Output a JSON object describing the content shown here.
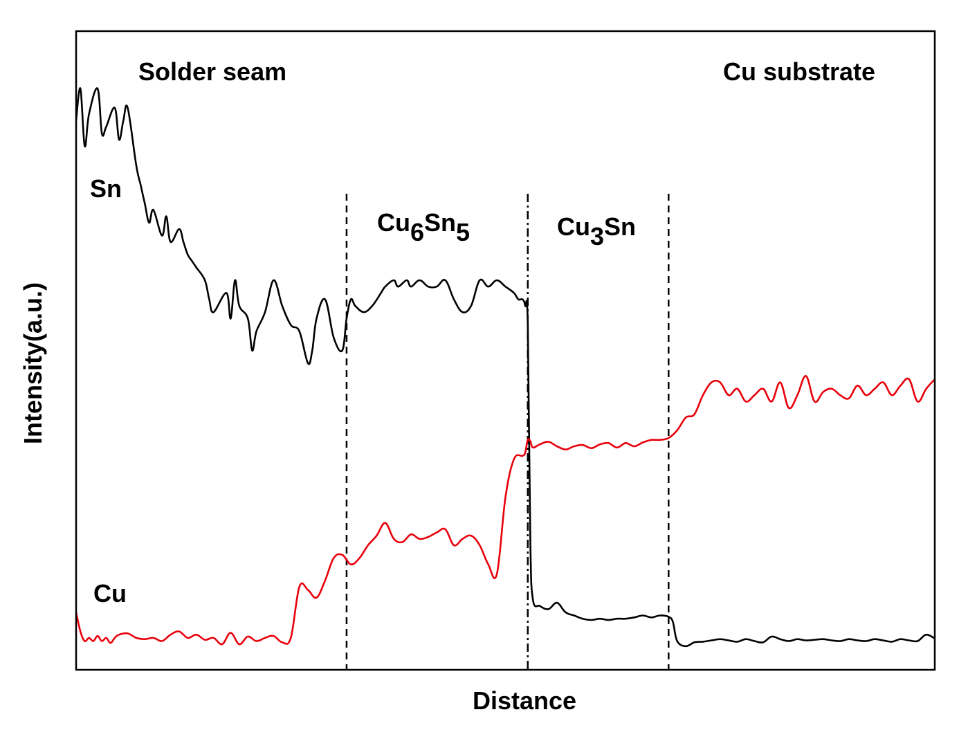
{
  "chart_data": {
    "type": "line",
    "xlabel": "Distance",
    "ylabel": "Intensity(a.u.)",
    "xlim": [
      0,
      100
    ],
    "ylim": [
      0,
      100
    ],
    "grid": false,
    "legend": "none",
    "region_labels": {
      "solder_seam": "Solder seam",
      "cu_substrate": "Cu substrate",
      "cu6sn5": {
        "base": "Cu",
        "sub1": "6",
        "mid": "Sn",
        "sub2": "5"
      },
      "cu3sn": {
        "base": "Cu",
        "sub1": "3",
        "tail": "Sn"
      }
    },
    "boundaries": [
      {
        "x": 31.5,
        "style": "dashed"
      },
      {
        "x": 52.6,
        "style": "dashdot"
      },
      {
        "x": 69.0,
        "style": "dashed"
      }
    ],
    "series": [
      {
        "name": "Sn",
        "color": "#000000",
        "x": [
          0,
          0.5,
          1,
          1.5,
          2.5,
          3,
          3.5,
          4.5,
          5,
          5.5,
          6,
          7,
          7.5,
          8,
          8.5,
          9,
          10,
          10.5,
          11,
          12,
          12.5,
          13,
          13.5,
          14,
          15,
          15.5,
          16,
          17.5,
          18,
          18.5,
          19,
          20,
          20.5,
          21,
          22,
          23,
          24,
          25,
          26,
          27,
          27.5,
          28,
          29,
          30,
          31,
          31.5,
          32,
          32.5,
          33.5,
          34.5,
          35.5,
          36,
          37,
          37.5,
          38.5,
          39,
          40,
          41,
          42,
          43,
          44,
          45,
          46,
          47,
          48,
          49,
          50,
          51,
          51.5,
          52,
          52.3,
          52.6,
          52.9,
          53.2,
          54,
          55,
          56,
          57,
          58,
          59,
          60,
          61,
          62,
          63,
          64,
          65,
          66,
          67,
          68,
          69,
          69.5,
          70,
          71,
          72,
          73,
          74,
          75,
          76,
          77,
          78,
          79,
          80,
          81,
          82,
          83,
          84,
          85,
          86,
          87,
          88,
          89,
          90,
          91,
          92,
          93,
          94,
          95,
          96,
          97,
          98,
          99,
          100
        ],
        "values": [
          86,
          91,
          82,
          87,
          91,
          84,
          85,
          88,
          83,
          86,
          88,
          79,
          76,
          73,
          70,
          72,
          68,
          71,
          67,
          69,
          67,
          65,
          64,
          63,
          61,
          58,
          56,
          59,
          55,
          61,
          57,
          55,
          50,
          53,
          56,
          61,
          57,
          54,
          53,
          48,
          50,
          55,
          58,
          52,
          50,
          55,
          58,
          57,
          56,
          57,
          59,
          60,
          61,
          60,
          61,
          60,
          61,
          60,
          60,
          61,
          58,
          56,
          57,
          61,
          60,
          61,
          60,
          59,
          58,
          58,
          57,
          54,
          20,
          11,
          10,
          9.5,
          10.5,
          9,
          8.5,
          8,
          7.8,
          8,
          7.8,
          8,
          8,
          8.2,
          8.5,
          8.2,
          8.5,
          8.3,
          7.5,
          4.5,
          3.7,
          4.3,
          4.4,
          4.6,
          4.8,
          4.6,
          4.4,
          4.8,
          4.5,
          4.3,
          5.2,
          4.8,
          4.5,
          4.8,
          4.6,
          4.7,
          4.8,
          4.6,
          4.5,
          4.8,
          4.6,
          4.5,
          4.8,
          4.6,
          4.4,
          4.8,
          4.6,
          4.5,
          5.5,
          4.9
        ]
      },
      {
        "name": "Cu",
        "color": "#e8000b",
        "x": [
          0,
          0.5,
          1,
          1.5,
          2,
          2.5,
          3,
          3.5,
          4,
          4.5,
          5,
          6,
          7,
          8,
          9,
          10,
          11,
          12,
          13,
          14,
          15,
          16,
          17,
          18,
          19,
          20,
          21,
          22,
          23,
          24,
          25,
          26,
          27,
          28,
          29,
          30,
          31,
          32,
          33,
          34,
          35,
          36,
          37,
          38,
          39,
          40,
          41,
          42,
          43,
          44,
          45,
          46,
          47,
          48,
          49,
          50,
          51,
          52,
          52.3,
          52.6,
          52.9,
          53.2,
          54,
          55,
          56,
          57,
          58,
          59,
          60,
          61,
          62,
          63,
          64,
          65,
          66,
          67,
          68,
          69,
          70,
          71,
          72,
          73,
          74,
          75,
          76,
          77,
          78,
          79,
          80,
          81,
          82,
          83,
          84,
          85,
          86,
          87,
          88,
          89,
          90,
          91,
          92,
          93,
          94,
          95,
          96,
          97,
          98,
          99,
          100
        ],
        "values": [
          9,
          6,
          4.5,
          5,
          4.5,
          5.3,
          4.5,
          5,
          4.2,
          5,
          5.5,
          5.7,
          5,
          4.8,
          5,
          4.5,
          5.5,
          6,
          5,
          5.5,
          4.7,
          5,
          4,
          5.8,
          4,
          5.2,
          4.5,
          5,
          5.3,
          4.3,
          5,
          13,
          12.5,
          11.3,
          14,
          17.5,
          18,
          16.5,
          17.5,
          19.5,
          21,
          23,
          20.5,
          20,
          21.2,
          20.5,
          20.8,
          21.5,
          22,
          19.5,
          20.5,
          21,
          19.5,
          16.5,
          15,
          27,
          33,
          33.5,
          34,
          36,
          35.8,
          34.8,
          35.3,
          35.7,
          35,
          34.5,
          35,
          35.2,
          34.7,
          35.3,
          35.5,
          34.8,
          35.5,
          35,
          35.6,
          36,
          36,
          36.3,
          37.5,
          39.5,
          40,
          43,
          45,
          45,
          43,
          44,
          42,
          43,
          44,
          42,
          45,
          41,
          43,
          46,
          42,
          43.5,
          44,
          43,
          42.5,
          44.5,
          43,
          44,
          45,
          43,
          44.5,
          45.5,
          42,
          44,
          45.5
        ]
      }
    ]
  }
}
